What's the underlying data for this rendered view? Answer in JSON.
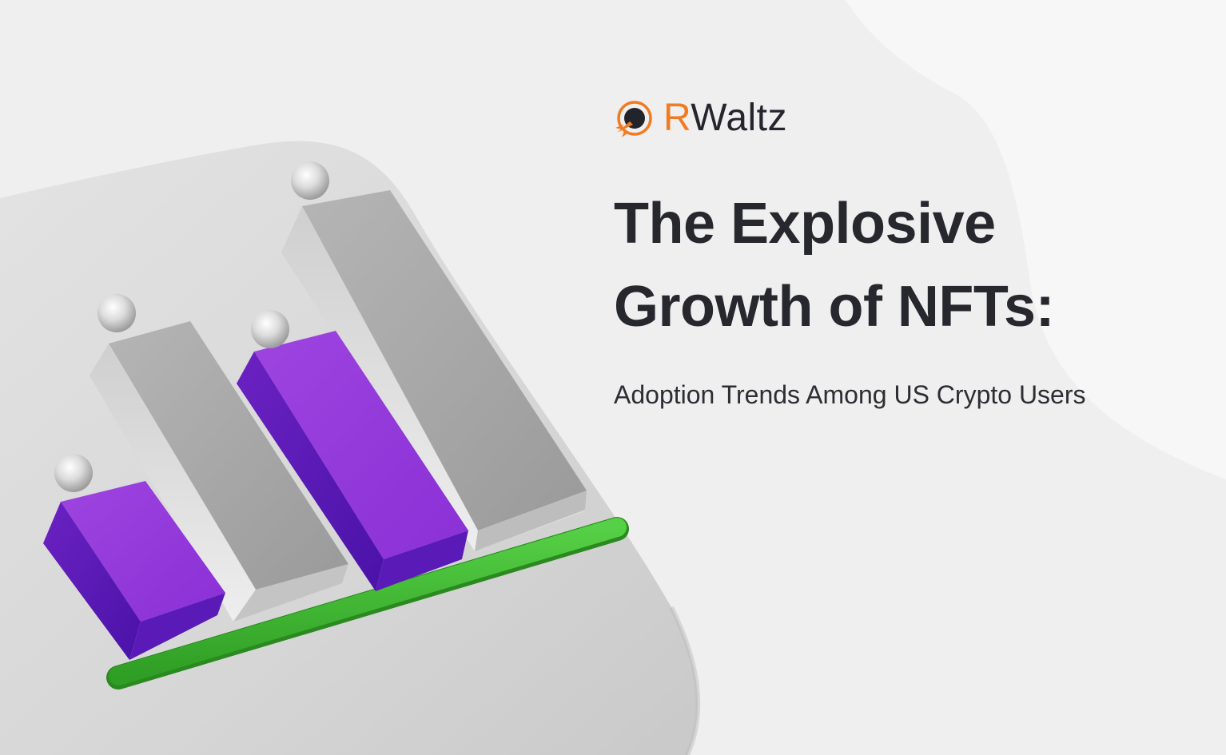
{
  "brand": {
    "logo_first_letter": "R",
    "logo_rest": "Waltz",
    "logo_icon": "rocket-orbit-icon",
    "accent_color": "#f27a21",
    "text_color": "#25252d"
  },
  "headline": {
    "line1": "The Explosive",
    "line2": "Growth of NFTs:"
  },
  "subtitle": "Adoption Trends Among US Crypto Users",
  "illustration": {
    "icon": "3d-bar-chart-icon",
    "bar_colors": [
      "#9a3cde",
      "#a3a3a3",
      "#9a3cde",
      "#a3a3a3"
    ],
    "baseline_color": "#3cb22c"
  }
}
